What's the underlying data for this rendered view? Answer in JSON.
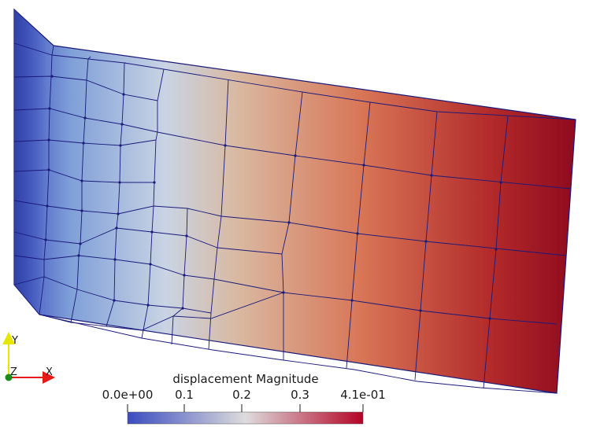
{
  "colorbar": {
    "title": "displacement Magnitude",
    "tick_labels": [
      "0.0e+00",
      "0.1",
      "0.2",
      "0.3",
      "4.1e-01"
    ],
    "tick_values": [
      0,
      0.1,
      0.2,
      0.3,
      0.41
    ],
    "range": [
      0,
      0.41
    ],
    "colormap": [
      "#3b4cc0",
      "#dddcdc",
      "#b40426"
    ]
  },
  "axes": {
    "y_label": "Y",
    "z_label": "Z",
    "x_label": "X",
    "colors": {
      "y": "#e6e600",
      "z": "#1a8a1a",
      "x": "#e61a1a"
    }
  },
  "mesh": {
    "edge_color": "#1a1a7a",
    "gradient_colors": [
      "#3b4cc0",
      "#7f9fd8",
      "#c9d4e4",
      "#d9b8a0",
      "#d87556",
      "#b22a2a",
      "#8f0a1e"
    ]
  }
}
